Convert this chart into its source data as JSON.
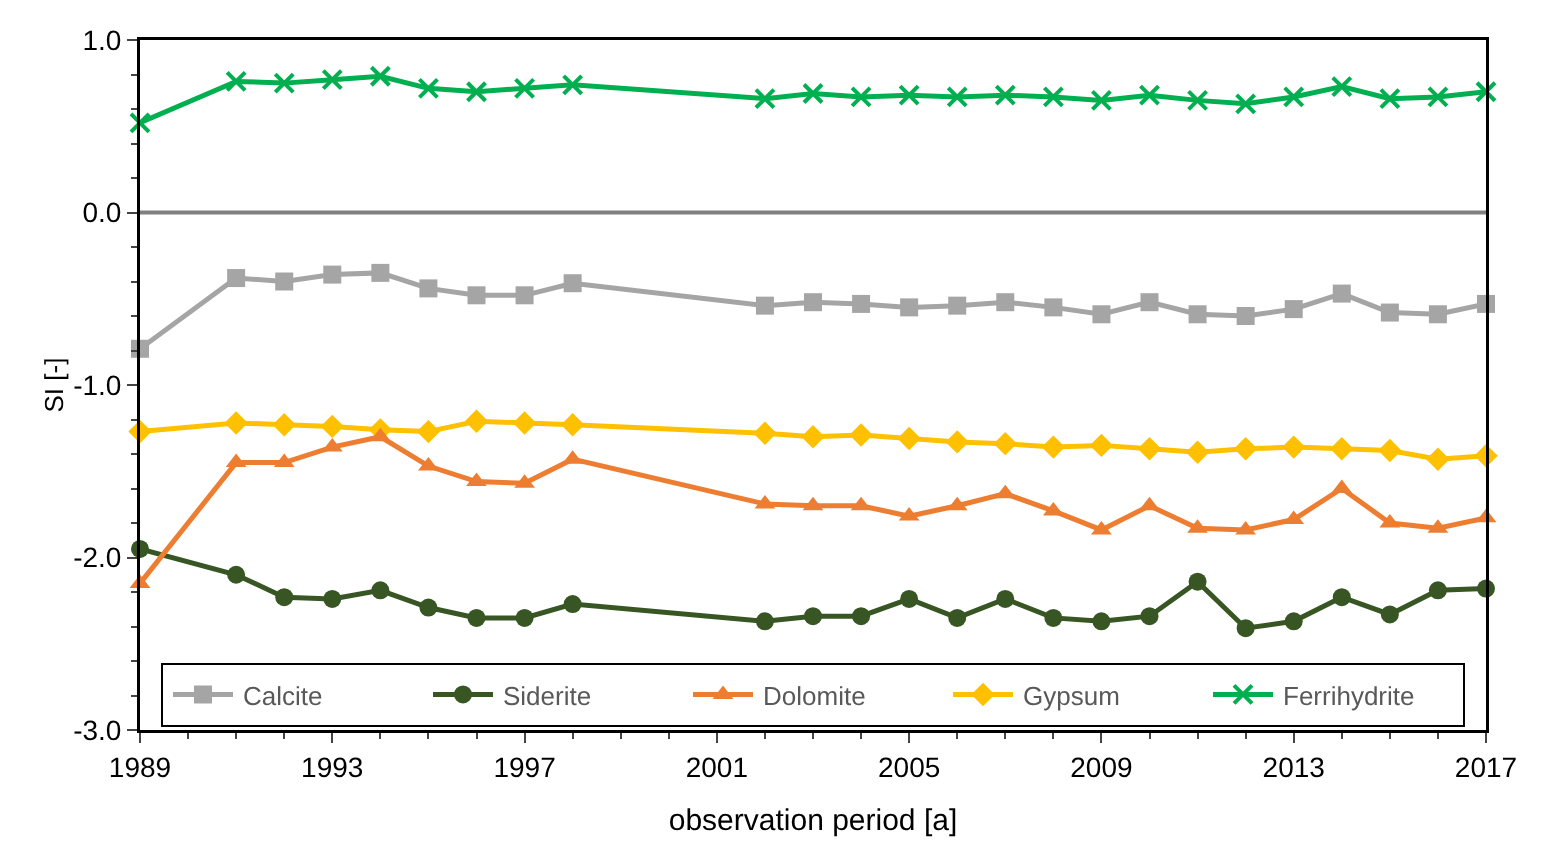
{
  "chart_data": {
    "type": "line",
    "xlabel": "observation period [a]",
    "ylabel": "SI [-]",
    "x": [
      1989,
      1991,
      1992,
      1993,
      1994,
      1995,
      1996,
      1997,
      1998,
      2002,
      2003,
      2004,
      2005,
      2006,
      2007,
      2008,
      2009,
      2010,
      2011,
      2012,
      2013,
      2014,
      2015,
      2016,
      2017
    ],
    "xlim": [
      1989,
      2017
    ],
    "xticks": [
      1989,
      1993,
      1997,
      2001,
      2005,
      2009,
      2013,
      2017
    ],
    "ylim": [
      -3,
      1
    ],
    "yticks": [
      {
        "value": -3,
        "label": "-3.0"
      },
      {
        "value": -2,
        "label": "-2.0"
      },
      {
        "value": -1,
        "label": "-1.0"
      },
      {
        "value": 0,
        "label": "0.0"
      },
      {
        "value": 1,
        "label": "1.0"
      }
    ],
    "grid": false,
    "legend": "bottom",
    "ref_lines": [
      {
        "axis": "y",
        "value": 0,
        "color": "#808080"
      }
    ],
    "series": [
      {
        "name": "Calcite",
        "color": "#a5a5a5",
        "marker": "square",
        "values": [
          -0.79,
          -0.38,
          -0.4,
          -0.36,
          -0.35,
          -0.44,
          -0.48,
          -0.48,
          -0.41,
          -0.54,
          -0.52,
          -0.53,
          -0.55,
          -0.54,
          -0.52,
          -0.55,
          -0.59,
          -0.52,
          -0.59,
          -0.6,
          -0.56,
          -0.47,
          -0.58,
          -0.59,
          -0.53
        ]
      },
      {
        "name": "Siderite",
        "color": "#375623",
        "marker": "circle",
        "values": [
          -1.95,
          -2.1,
          -2.23,
          -2.24,
          -2.19,
          -2.29,
          -2.35,
          -2.35,
          -2.27,
          -2.37,
          -2.34,
          -2.34,
          -2.24,
          -2.35,
          -2.24,
          -2.35,
          -2.37,
          -2.34,
          -2.14,
          -2.41,
          -2.37,
          -2.23,
          -2.33,
          -2.19,
          -2.18
        ]
      },
      {
        "name": "Dolomite",
        "color": "#ed7d31",
        "marker": "triangle",
        "values": [
          -2.15,
          -1.45,
          -1.45,
          -1.36,
          -1.3,
          -1.47,
          -1.56,
          -1.57,
          -1.43,
          -1.69,
          -1.7,
          -1.7,
          -1.76,
          -1.7,
          -1.63,
          -1.73,
          -1.84,
          -1.7,
          -1.83,
          -1.84,
          -1.78,
          -1.6,
          -1.8,
          -1.83,
          -1.77
        ]
      },
      {
        "name": "Gypsum",
        "color": "#ffc000",
        "marker": "diamond",
        "values": [
          -1.27,
          -1.22,
          -1.23,
          -1.24,
          -1.26,
          -1.27,
          -1.21,
          -1.22,
          -1.23,
          -1.28,
          -1.3,
          -1.29,
          -1.31,
          -1.33,
          -1.34,
          -1.36,
          -1.35,
          -1.37,
          -1.39,
          -1.37,
          -1.36,
          -1.37,
          -1.38,
          -1.43,
          -1.41
        ]
      },
      {
        "name": "Ferrihydrite",
        "color": "#00b050",
        "marker": "cross",
        "values": [
          0.52,
          0.76,
          0.75,
          0.77,
          0.79,
          0.72,
          0.7,
          0.72,
          0.74,
          0.66,
          0.69,
          0.67,
          0.68,
          0.67,
          0.68,
          0.67,
          0.65,
          0.68,
          0.65,
          0.63,
          0.67,
          0.73,
          0.66,
          0.67,
          0.7
        ]
      }
    ]
  }
}
